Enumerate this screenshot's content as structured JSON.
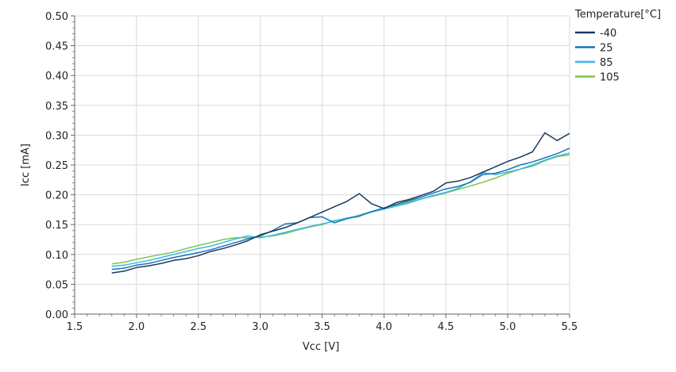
{
  "chart_data": {
    "type": "line",
    "xlabel": "Vcc [V]",
    "ylabel": "Icc [mA]",
    "xlim": [
      1.5,
      5.5
    ],
    "ylim": [
      0,
      0.5
    ],
    "x_ticks": [
      "1.5",
      "2.0",
      "2.5",
      "3.0",
      "3.5",
      "4.0",
      "4.5",
      "5.0",
      "5.5"
    ],
    "y_ticks": [
      "0.00",
      "0.05",
      "0.10",
      "0.15",
      "0.20",
      "0.25",
      "0.30",
      "0.35",
      "0.40",
      "0.45",
      "0.50"
    ],
    "grid": true,
    "legend": {
      "title": "Temperature[°C]",
      "placement": "right"
    },
    "x": [
      1.8,
      1.9,
      2.0,
      2.1,
      2.2,
      2.3,
      2.4,
      2.5,
      2.6,
      2.7,
      2.8,
      2.9,
      3.0,
      3.1,
      3.2,
      3.3,
      3.4,
      3.5,
      3.6,
      3.7,
      3.8,
      3.9,
      4.0,
      4.1,
      4.2,
      4.3,
      4.4,
      4.5,
      4.6,
      4.7,
      4.8,
      4.9,
      5.0,
      5.1,
      5.2,
      5.3,
      5.4,
      5.5
    ],
    "series": [
      {
        "name": "-40",
        "color": "#1b3a5c",
        "values": [
          0.069,
          0.072,
          0.078,
          0.081,
          0.085,
          0.09,
          0.093,
          0.098,
          0.105,
          0.11,
          0.116,
          0.123,
          0.133,
          0.139,
          0.145,
          0.153,
          0.162,
          0.171,
          0.18,
          0.189,
          0.202,
          0.185,
          0.177,
          0.187,
          0.192,
          0.199,
          0.206,
          0.22,
          0.223,
          0.229,
          0.238,
          0.247,
          0.256,
          0.263,
          0.272,
          0.304,
          0.291,
          0.303
        ]
      },
      {
        "name": "25",
        "color": "#1a73b8",
        "values": [
          0.075,
          0.077,
          0.082,
          0.085,
          0.09,
          0.095,
          0.099,
          0.103,
          0.108,
          0.114,
          0.12,
          0.126,
          0.131,
          0.14,
          0.151,
          0.153,
          0.162,
          0.163,
          0.153,
          0.16,
          0.164,
          0.172,
          0.178,
          0.184,
          0.19,
          0.196,
          0.203,
          0.21,
          0.214,
          0.221,
          0.234,
          0.236,
          0.242,
          0.25,
          0.255,
          0.262,
          0.269,
          0.278
        ]
      },
      {
        "name": "85",
        "color": "#34b8e8",
        "values": [
          0.08,
          0.082,
          0.086,
          0.09,
          0.095,
          0.1,
          0.105,
          0.11,
          0.114,
          0.12,
          0.126,
          0.131,
          0.128,
          0.132,
          0.137,
          0.142,
          0.147,
          0.151,
          0.156,
          0.161,
          0.165,
          0.171,
          0.176,
          0.181,
          0.186,
          0.193,
          0.199,
          0.204,
          0.211,
          0.222,
          0.237,
          0.234,
          0.238,
          0.243,
          0.25,
          0.258,
          0.265,
          0.27
        ]
      },
      {
        "name": "105",
        "color": "#7cc44c",
        "values": [
          0.084,
          0.087,
          0.092,
          0.096,
          0.1,
          0.104,
          0.11,
          0.115,
          0.12,
          0.125,
          0.128,
          0.128,
          0.129,
          0.131,
          0.135,
          0.141,
          0.146,
          0.15,
          0.157,
          0.16,
          0.166,
          0.172,
          0.176,
          0.183,
          0.188,
          0.193,
          0.198,
          0.203,
          0.209,
          0.215,
          0.221,
          0.228,
          0.236,
          0.243,
          0.248,
          0.257,
          0.264,
          0.267
        ]
      }
    ]
  }
}
